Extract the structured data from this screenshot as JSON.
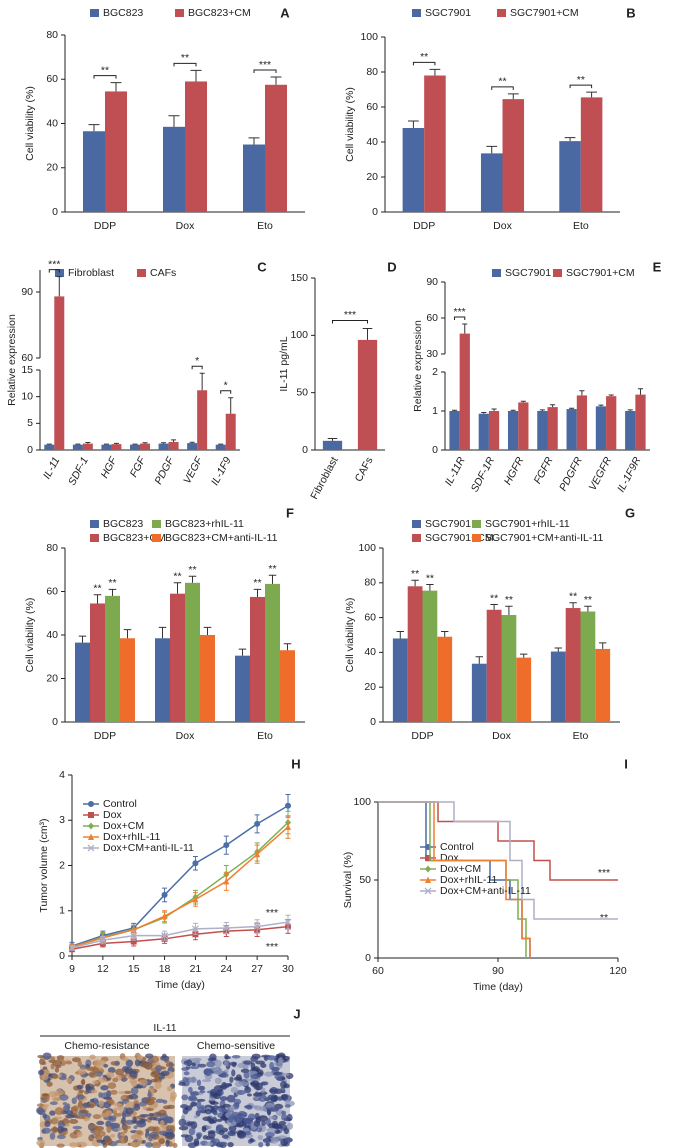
{
  "chart_data": [
    {
      "panel": "A",
      "type": "bar",
      "ylabel": "Cell viability (%)",
      "categories": [
        "DDP",
        "Dox",
        "Eto"
      ],
      "ylim": [
        0,
        80
      ],
      "yticks": [
        0,
        20,
        40,
        60,
        80
      ],
      "series": [
        {
          "name": "BGC823",
          "color": "#4a69a2",
          "values": [
            36.5,
            38.5,
            30.5
          ],
          "errors": [
            3,
            5,
            3
          ]
        },
        {
          "name": "BGC823+CM",
          "color": "#bf4f53",
          "values": [
            54.5,
            59,
            57.5
          ],
          "errors": [
            4,
            5,
            3.5
          ]
        }
      ],
      "brackets": [
        "**",
        "**",
        "***"
      ]
    },
    {
      "panel": "B",
      "type": "bar",
      "ylabel": "Cell viability (%)",
      "categories": [
        "DDP",
        "Dox",
        "Eto"
      ],
      "ylim": [
        0,
        100
      ],
      "yticks": [
        0,
        20,
        40,
        60,
        80,
        100
      ],
      "series": [
        {
          "name": "SGC7901",
          "color": "#4a69a2",
          "values": [
            48,
            33.5,
            40.5
          ],
          "errors": [
            4,
            4,
            2
          ]
        },
        {
          "name": "SGC7901+CM",
          "color": "#bf4f53",
          "values": [
            78,
            64.5,
            65.5
          ],
          "errors": [
            3.5,
            3,
            3
          ]
        }
      ],
      "brackets": [
        "**",
        "**",
        "**"
      ]
    },
    {
      "panel": "C",
      "type": "bar",
      "ylabel": "Relative expression",
      "categories": [
        "IL-11",
        "SDF-1",
        "HGF",
        "FGF",
        "PDGF",
        "VEGF",
        "IL-1F9"
      ],
      "ylim": [
        0,
        100
      ],
      "axis_break": [
        15,
        60
      ],
      "yticks": [
        0,
        5,
        10,
        15,
        60,
        90
      ],
      "series": [
        {
          "name": "Fibroblast",
          "color": "#4a69a2",
          "values": [
            1,
            1,
            1,
            1,
            1.2,
            1.3,
            1
          ],
          "errors": [
            0.1,
            0.1,
            0.1,
            0.1,
            0.15,
            0.15,
            0.1
          ]
        },
        {
          "name": "CAFs",
          "color": "#bf4f53",
          "values": [
            88,
            1.2,
            1.1,
            1.2,
            1.5,
            11.2,
            6.8
          ],
          "errors": [
            9,
            0.2,
            0.15,
            0.15,
            0.4,
            3.2,
            3
          ]
        }
      ],
      "brackets": [
        "***",
        null,
        null,
        null,
        null,
        "*",
        "*"
      ]
    },
    {
      "panel": "D",
      "type": "bar",
      "ylabel": "IL-11 pg/mL",
      "categories": [
        "Fibroblast",
        "CAFs"
      ],
      "ylim": [
        0,
        150
      ],
      "yticks": [
        0,
        50,
        100,
        150
      ],
      "values": [
        8,
        96
      ],
      "errors": [
        2,
        10
      ],
      "colors": [
        "#4a69a2",
        "#bf4f53"
      ],
      "bracket": "***"
    },
    {
      "panel": "E",
      "type": "bar",
      "ylabel": "Relative expression",
      "categories": [
        "IL-11R",
        "SDF-1R",
        "HGFR",
        "FGFR",
        "PDGFR",
        "VEGFR",
        "IL-1F9R"
      ],
      "ylim": [
        0,
        90
      ],
      "axis_break": [
        2,
        30
      ],
      "yticks": [
        0,
        1,
        2,
        30,
        60,
        90
      ],
      "series": [
        {
          "name": "SGC7901",
          "color": "#4a69a2",
          "values": [
            1.0,
            0.93,
            1.0,
            1.0,
            1.05,
            1.12,
            1.0
          ],
          "errors": [
            0.02,
            0.03,
            0.02,
            0.03,
            0.02,
            0.03,
            0.03
          ]
        },
        {
          "name": "SGC7901+CM",
          "color": "#bf4f53",
          "values": [
            47,
            1.0,
            1.22,
            1.1,
            1.4,
            1.38,
            1.42
          ],
          "errors": [
            8,
            0.05,
            0.03,
            0.06,
            0.12,
            0.03,
            0.15
          ]
        }
      ],
      "brackets": [
        "***",
        null,
        null,
        null,
        null,
        null,
        null
      ]
    },
    {
      "panel": "F",
      "type": "bar",
      "ylabel": "Cell viability (%)",
      "categories": [
        "DDP",
        "Dox",
        "Eto"
      ],
      "ylim": [
        0,
        80
      ],
      "yticks": [
        0,
        20,
        40,
        60,
        80
      ],
      "series": [
        {
          "name": "BGC823",
          "color": "#4a69a2",
          "values": [
            36.5,
            38.5,
            30.5
          ],
          "errors": [
            3,
            5,
            3
          ]
        },
        {
          "name": "BGC823+CM",
          "color": "#bf4f53",
          "values": [
            54.5,
            59,
            57.5
          ],
          "errors": [
            4,
            5,
            3.5
          ],
          "significance": [
            "**",
            "**",
            "**"
          ]
        },
        {
          "name": "BGC823+rhIL-11",
          "color": "#7daa4f",
          "values": [
            58,
            64,
            63.5
          ],
          "errors": [
            3,
            3,
            4
          ],
          "significance": [
            "**",
            "**",
            "**"
          ]
        },
        {
          "name": "BGC823+CM+anti-IL-11",
          "color": "#ee6d2a",
          "values": [
            38.5,
            40,
            33
          ],
          "errors": [
            4,
            3.5,
            3
          ]
        }
      ]
    },
    {
      "panel": "G",
      "type": "bar",
      "ylabel": "Cell viability (%)",
      "categories": [
        "DDP",
        "Dox",
        "Eto"
      ],
      "ylim": [
        0,
        100
      ],
      "yticks": [
        0,
        20,
        40,
        60,
        80,
        100
      ],
      "series": [
        {
          "name": "SGC7901",
          "color": "#4a69a2",
          "values": [
            48,
            33.5,
            40.5
          ],
          "errors": [
            4,
            4,
            2
          ]
        },
        {
          "name": "SGC7901+CM",
          "color": "#bf4f53",
          "values": [
            78,
            64.5,
            65.5
          ],
          "errors": [
            3.5,
            3,
            3
          ],
          "significance": [
            "**",
            "**",
            "**"
          ]
        },
        {
          "name": "SGC7901+rhIL-11",
          "color": "#7daa4f",
          "values": [
            75.5,
            61.5,
            63.5
          ],
          "errors": [
            3.5,
            5,
            3
          ],
          "significance": [
            "**",
            "**",
            "**"
          ]
        },
        {
          "name": "SGC7901+CM+anti-IL-11",
          "color": "#ee6d2a",
          "values": [
            49,
            37,
            42
          ],
          "errors": [
            3,
            2,
            3.5
          ]
        }
      ]
    },
    {
      "panel": "H",
      "type": "line",
      "xlabel": "Time (day)",
      "ylabel": "Tumor volume (cm³)",
      "x": [
        9,
        12,
        15,
        18,
        21,
        24,
        27,
        30
      ],
      "xlim": [
        9,
        30
      ],
      "xticks": [
        9,
        12,
        15,
        18,
        21,
        24,
        27,
        30
      ],
      "ylim": [
        0,
        4
      ],
      "yticks": [
        0,
        1,
        2,
        3,
        4
      ],
      "series": [
        {
          "name": "Control",
          "color": "#4a6ea8",
          "marker": "circle",
          "values": [
            0.22,
            0.45,
            0.62,
            1.35,
            2.05,
            2.45,
            2.92,
            3.32
          ],
          "errors": [
            0.08,
            0.1,
            0.1,
            0.15,
            0.15,
            0.2,
            0.2,
            0.25
          ]
        },
        {
          "name": "Dox",
          "color": "#c0504d",
          "marker": "square",
          "values": [
            0.15,
            0.28,
            0.32,
            0.38,
            0.48,
            0.55,
            0.58,
            0.65
          ],
          "errors": [
            0.05,
            0.08,
            0.1,
            0.1,
            0.12,
            0.12,
            0.15,
            0.15
          ]
        },
        {
          "name": "Dox+CM",
          "color": "#7fae50",
          "marker": "diamond",
          "values": [
            0.2,
            0.42,
            0.58,
            0.85,
            1.3,
            1.8,
            2.3,
            2.95
          ],
          "errors": [
            0.06,
            0.1,
            0.1,
            0.12,
            0.15,
            0.2,
            0.2,
            0.25
          ]
        },
        {
          "name": "Dox+rhIL-11",
          "color": "#f07f30",
          "marker": "triangle",
          "values": [
            0.2,
            0.4,
            0.58,
            0.88,
            1.25,
            1.65,
            2.25,
            2.85
          ],
          "errors": [
            0.06,
            0.1,
            0.1,
            0.12,
            0.15,
            0.2,
            0.2,
            0.25
          ]
        },
        {
          "name": "Dox+CM+anti-IL-11",
          "color": "#aeb0c8",
          "marker": "x",
          "values": [
            0.18,
            0.35,
            0.45,
            0.45,
            0.6,
            0.62,
            0.65,
            0.75
          ],
          "errors": [
            0.05,
            0.08,
            0.1,
            0.1,
            0.12,
            0.12,
            0.15,
            0.15
          ]
        }
      ],
      "annotations": [
        "***",
        "***"
      ]
    },
    {
      "panel": "I",
      "type": "step",
      "xlabel": "Time (day)",
      "ylabel": "Survival (%)",
      "xlim": [
        60,
        120
      ],
      "xticks": [
        60,
        90,
        120
      ],
      "ylim": [
        0,
        100
      ],
      "yticks": [
        0,
        50,
        100
      ],
      "series": [
        {
          "name": "Control",
          "color": "#4a6ea8",
          "marker": "circle",
          "x": [
            60,
            72,
            88,
            93,
            96,
            98
          ],
          "values": [
            100,
            62.5,
            50,
            37.5,
            12.5,
            0
          ]
        },
        {
          "name": "Dox",
          "color": "#c0504d",
          "marker": "square",
          "x": [
            60,
            75,
            90,
            99,
            103,
            120
          ],
          "values": [
            100,
            87.5,
            75,
            62.5,
            50,
            50
          ]
        },
        {
          "name": "Dox+CM",
          "color": "#7fae50",
          "marker": "diamond",
          "x": [
            60,
            73,
            92,
            95,
            97
          ],
          "values": [
            100,
            62.5,
            50,
            25,
            0
          ]
        },
        {
          "name": "Dox+rhIL-11",
          "color": "#f07f30",
          "marker": "triangle",
          "x": [
            60,
            74,
            92,
            96,
            98
          ],
          "values": [
            100,
            62.5,
            37.5,
            12.5,
            0
          ]
        },
        {
          "name": "Dox+CM+anti-IL-11",
          "color": "#aeb0c8",
          "marker": "x",
          "x": [
            60,
            79,
            93,
            96,
            99,
            120
          ],
          "values": [
            100,
            87.5,
            62.5,
            37.5,
            25,
            25
          ]
        }
      ],
      "annotations": [
        "***",
        "**"
      ]
    }
  ],
  "image_panel": {
    "panel": "J",
    "title": "IL-11",
    "labels": [
      "Chemo-resistance",
      "Chemo-sensitive"
    ]
  }
}
